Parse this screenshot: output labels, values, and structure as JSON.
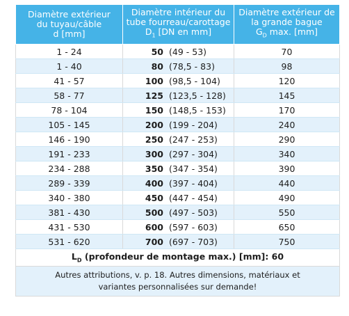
{
  "header": {
    "col1": {
      "line1": "Diamètre extérieur",
      "line2": "du tuyau/câble",
      "line3": "d [mm]"
    },
    "col2": {
      "line1": "Diamètre intérieur du",
      "line2": "tube fourreau/carottage",
      "line3_prefix": "D",
      "line3_sub": "1",
      "line3_suffix": " [DN en mm]"
    },
    "col3": {
      "line1": "Diamètre extérieur de",
      "line2": "la grande bague",
      "line3_prefix": "G",
      "line3_sub": "D",
      "line3_suffix": " max. [mm]"
    }
  },
  "rows": [
    {
      "d": "1 - 24",
      "dn": "50",
      "range": "(49 - 53)",
      "gd": "70"
    },
    {
      "d": "1 - 40",
      "dn": "80",
      "range": "(78,5 - 83)",
      "gd": "98"
    },
    {
      "d": "41 - 57",
      "dn": "100",
      "range": "(98,5 - 104)",
      "gd": "120"
    },
    {
      "d": "58 - 77",
      "dn": "125",
      "range": "(123,5 - 128)",
      "gd": "145"
    },
    {
      "d": "78 - 104",
      "dn": "150",
      "range": "(148,5 - 153)",
      "gd": "170"
    },
    {
      "d": "105 - 145",
      "dn": "200",
      "range": "(199 - 204)",
      "gd": "240"
    },
    {
      "d": "146 - 190",
      "dn": "250",
      "range": "(247 - 253)",
      "gd": "290"
    },
    {
      "d": "191 - 233",
      "dn": "300",
      "range": "(297 - 304)",
      "gd": "340"
    },
    {
      "d": "234 - 288",
      "dn": "350",
      "range": "(347 - 354)",
      "gd": "390"
    },
    {
      "d": "289 - 339",
      "dn": "400",
      "range": "(397 - 404)",
      "gd": "440"
    },
    {
      "d": "340 - 380",
      "dn": "450",
      "range": "(447 - 454)",
      "gd": "490"
    },
    {
      "d": "381 - 430",
      "dn": "500",
      "range": "(497 - 503)",
      "gd": "550"
    },
    {
      "d": "431 - 530",
      "dn": "600",
      "range": "(597 - 603)",
      "gd": "650"
    },
    {
      "d": "531 - 620",
      "dn": "700",
      "range": "(697 - 703)",
      "gd": "750"
    }
  ],
  "ld": {
    "prefix": "L",
    "sub": "D",
    "suffix": " (profondeur de montage max.) [mm]: 60"
  },
  "note": {
    "line1": "Autres attributions, v. p. 18. Autres dimensions, matériaux et",
    "line2": "variantes personnalisées sur demande!"
  },
  "colors": {
    "header_bg": "#45b3e7",
    "stripe_bg": "#e3f1fb"
  }
}
